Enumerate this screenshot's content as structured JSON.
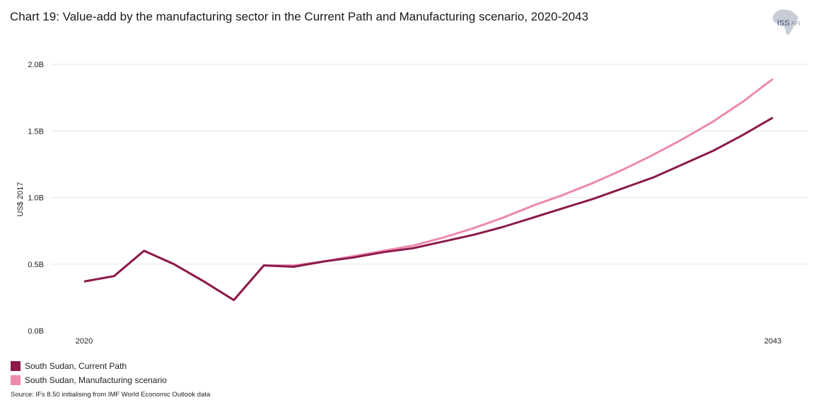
{
  "title": "Chart 19: Value-add by the manufacturing sector in the Current Path and Manufacturing scenario, 2020-2043",
  "logo": {
    "text": "ISS",
    "sub": "AFI",
    "icon": "africa-map-icon"
  },
  "source": "Source: IFs 8.50 initialising from IMF World Economic Outlook data",
  "colors": {
    "current_path": "#8b1a4a",
    "manufacturing": "#ee8aad",
    "grid": "#e6e6e6"
  },
  "chart_data": {
    "type": "line",
    "title": "Chart 19: Value-add by the manufacturing sector in the Current Path and Manufacturing scenario, 2020-2043",
    "xlabel": "",
    "ylabel": "US$ 2017",
    "xlim": [
      2020,
      2043
    ],
    "ylim": [
      0,
      2.0
    ],
    "y_ticks": [
      0,
      0.5,
      1.0,
      1.5,
      2.0
    ],
    "y_tick_labels": [
      "0.0B",
      "0.5B",
      "1.0B",
      "1.5B",
      "2.0B"
    ],
    "x_tick_labels": [
      {
        "x": 2020,
        "label": "2020"
      },
      {
        "x": 2043,
        "label": "2043"
      }
    ],
    "x": [
      2020,
      2021,
      2022,
      2023,
      2024,
      2025,
      2026,
      2027,
      2028,
      2029,
      2030,
      2031,
      2032,
      2033,
      2034,
      2035,
      2036,
      2037,
      2038,
      2039,
      2040,
      2041,
      2042,
      2043
    ],
    "series": [
      {
        "name": "South Sudan, Current Path",
        "color_key": "current_path",
        "values": [
          0.37,
          0.41,
          0.6,
          0.5,
          0.37,
          0.23,
          0.49,
          0.48,
          0.52,
          0.55,
          0.59,
          0.62,
          0.67,
          0.72,
          0.78,
          0.85,
          0.92,
          0.99,
          1.07,
          1.15,
          1.25,
          1.35,
          1.47,
          1.6
        ]
      },
      {
        "name": "South Sudan, Manufacturing scenario",
        "color_key": "manufacturing",
        "values": [
          0.37,
          0.41,
          0.6,
          0.5,
          0.37,
          0.23,
          0.49,
          0.49,
          0.52,
          0.56,
          0.6,
          0.64,
          0.7,
          0.77,
          0.85,
          0.94,
          1.02,
          1.11,
          1.21,
          1.32,
          1.44,
          1.57,
          1.72,
          1.89
        ]
      }
    ],
    "legend": [
      {
        "label": "South Sudan, Current Path",
        "color_key": "current_path"
      },
      {
        "label": "South Sudan, Manufacturing scenario",
        "color_key": "manufacturing"
      }
    ],
    "legend_position": "bottom-left",
    "grid": true
  }
}
